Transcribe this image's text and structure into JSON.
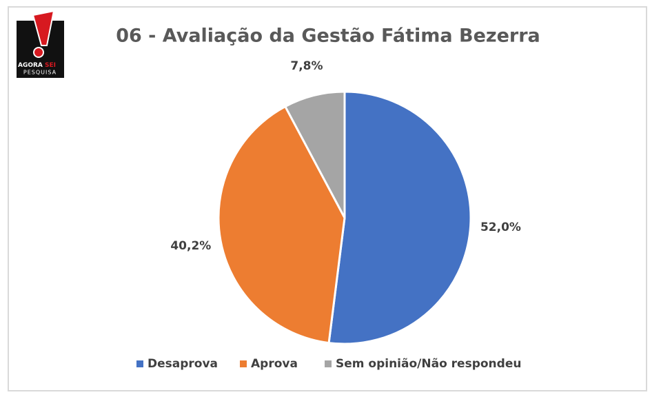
{
  "logo": {
    "brand": [
      "AGORA",
      "SEI"
    ],
    "tagline": "PESQUISA"
  },
  "chart_data": {
    "type": "pie",
    "title": "06 - Avaliação da Gestão Fátima Bezerra",
    "categories": [
      "Desaprova",
      "Aprova",
      "Sem opinião/Não respondeu"
    ],
    "values": [
      52.0,
      40.2,
      7.8
    ],
    "value_labels": [
      "52,0%",
      "40,2%",
      "7,8%"
    ],
    "colors": [
      "#4472c4",
      "#ed7d31",
      "#a5a5a5"
    ],
    "legend": "bottom"
  }
}
